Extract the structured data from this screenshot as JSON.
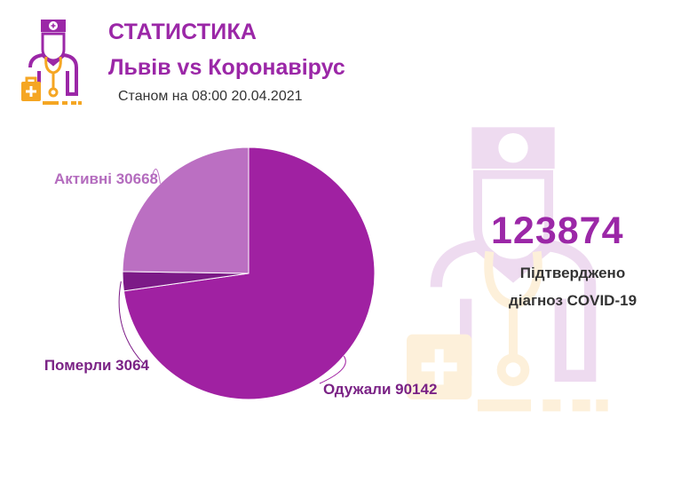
{
  "header": {
    "title": "СТАТИСТИКА",
    "subtitle": "Львів vs Коронавірус",
    "date": "Станом на 08:00 20.04.2021"
  },
  "summary": {
    "total": "123874",
    "label_line1": "Підтверджено",
    "label_line2": "діагноз COVID-19"
  },
  "colors": {
    "primary": "#9b27a7",
    "active": "#bb6fc2",
    "deaths": "#7c1a87",
    "recovered": "#a021a2",
    "label_active": "#b46cbe",
    "label_dark": "#7a2285",
    "icon_orange": "#f5a623"
  },
  "icons": {
    "logo": "doctor-icon",
    "watermark": "doctor-icon"
  },
  "chart_data": {
    "type": "pie",
    "slices": [
      {
        "key": "recovered",
        "label": "Одужали 90142",
        "value": 90142,
        "color": "#a021a2",
        "label_color": "#7a2285"
      },
      {
        "key": "deaths",
        "label": "Померли 3064",
        "value": 3064,
        "color": "#7c1a87",
        "label_color": "#7a2285"
      },
      {
        "key": "active",
        "label": "Активні 30668",
        "value": 30668,
        "color": "#bb6fc2",
        "label_color": "#b46cbe"
      }
    ]
  }
}
